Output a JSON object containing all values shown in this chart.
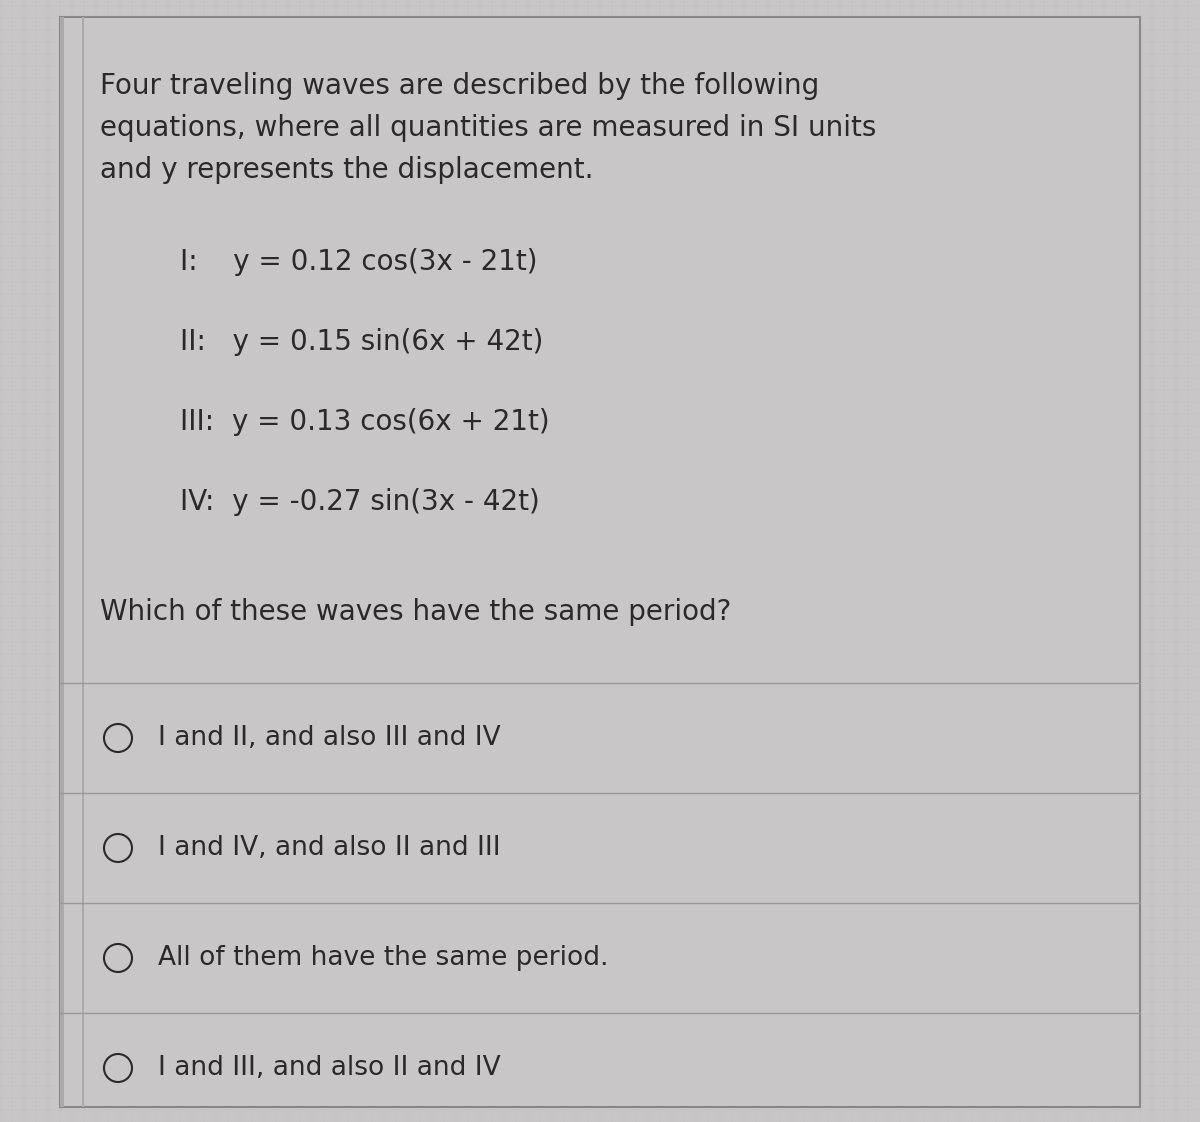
{
  "background_color": "#c8c6c6",
  "box_bg": "#c8c6c6",
  "box_border": "#888888",
  "left_bar_color": "#888888",
  "separator_color": "#999999",
  "text_color": "#2a2a2a",
  "intro_text_line1": "Four traveling waves are described by the following",
  "intro_text_line2": "equations, where all quantities are measured in SI units",
  "intro_text_line3": "and y represents the displacement.",
  "equations": [
    "I:    y = 0.12 cos(3x - 21t)",
    "II:   y = 0.15 sin(6x + 42t)",
    "III:  y = 0.13 cos(6x + 21t)",
    "IV:  y = -0.27 sin(3x - 42t)"
  ],
  "question": "Which of these waves have the same period?",
  "options": [
    "I and II, and also III and IV",
    "I and IV, and also II and III",
    "All of them have the same period.",
    "I and III, and also II and IV"
  ],
  "intro_fontsize": 20,
  "eq_fontsize": 20,
  "question_fontsize": 20,
  "option_fontsize": 19,
  "fig_width": 12.0,
  "fig_height": 11.22,
  "dpi": 100
}
